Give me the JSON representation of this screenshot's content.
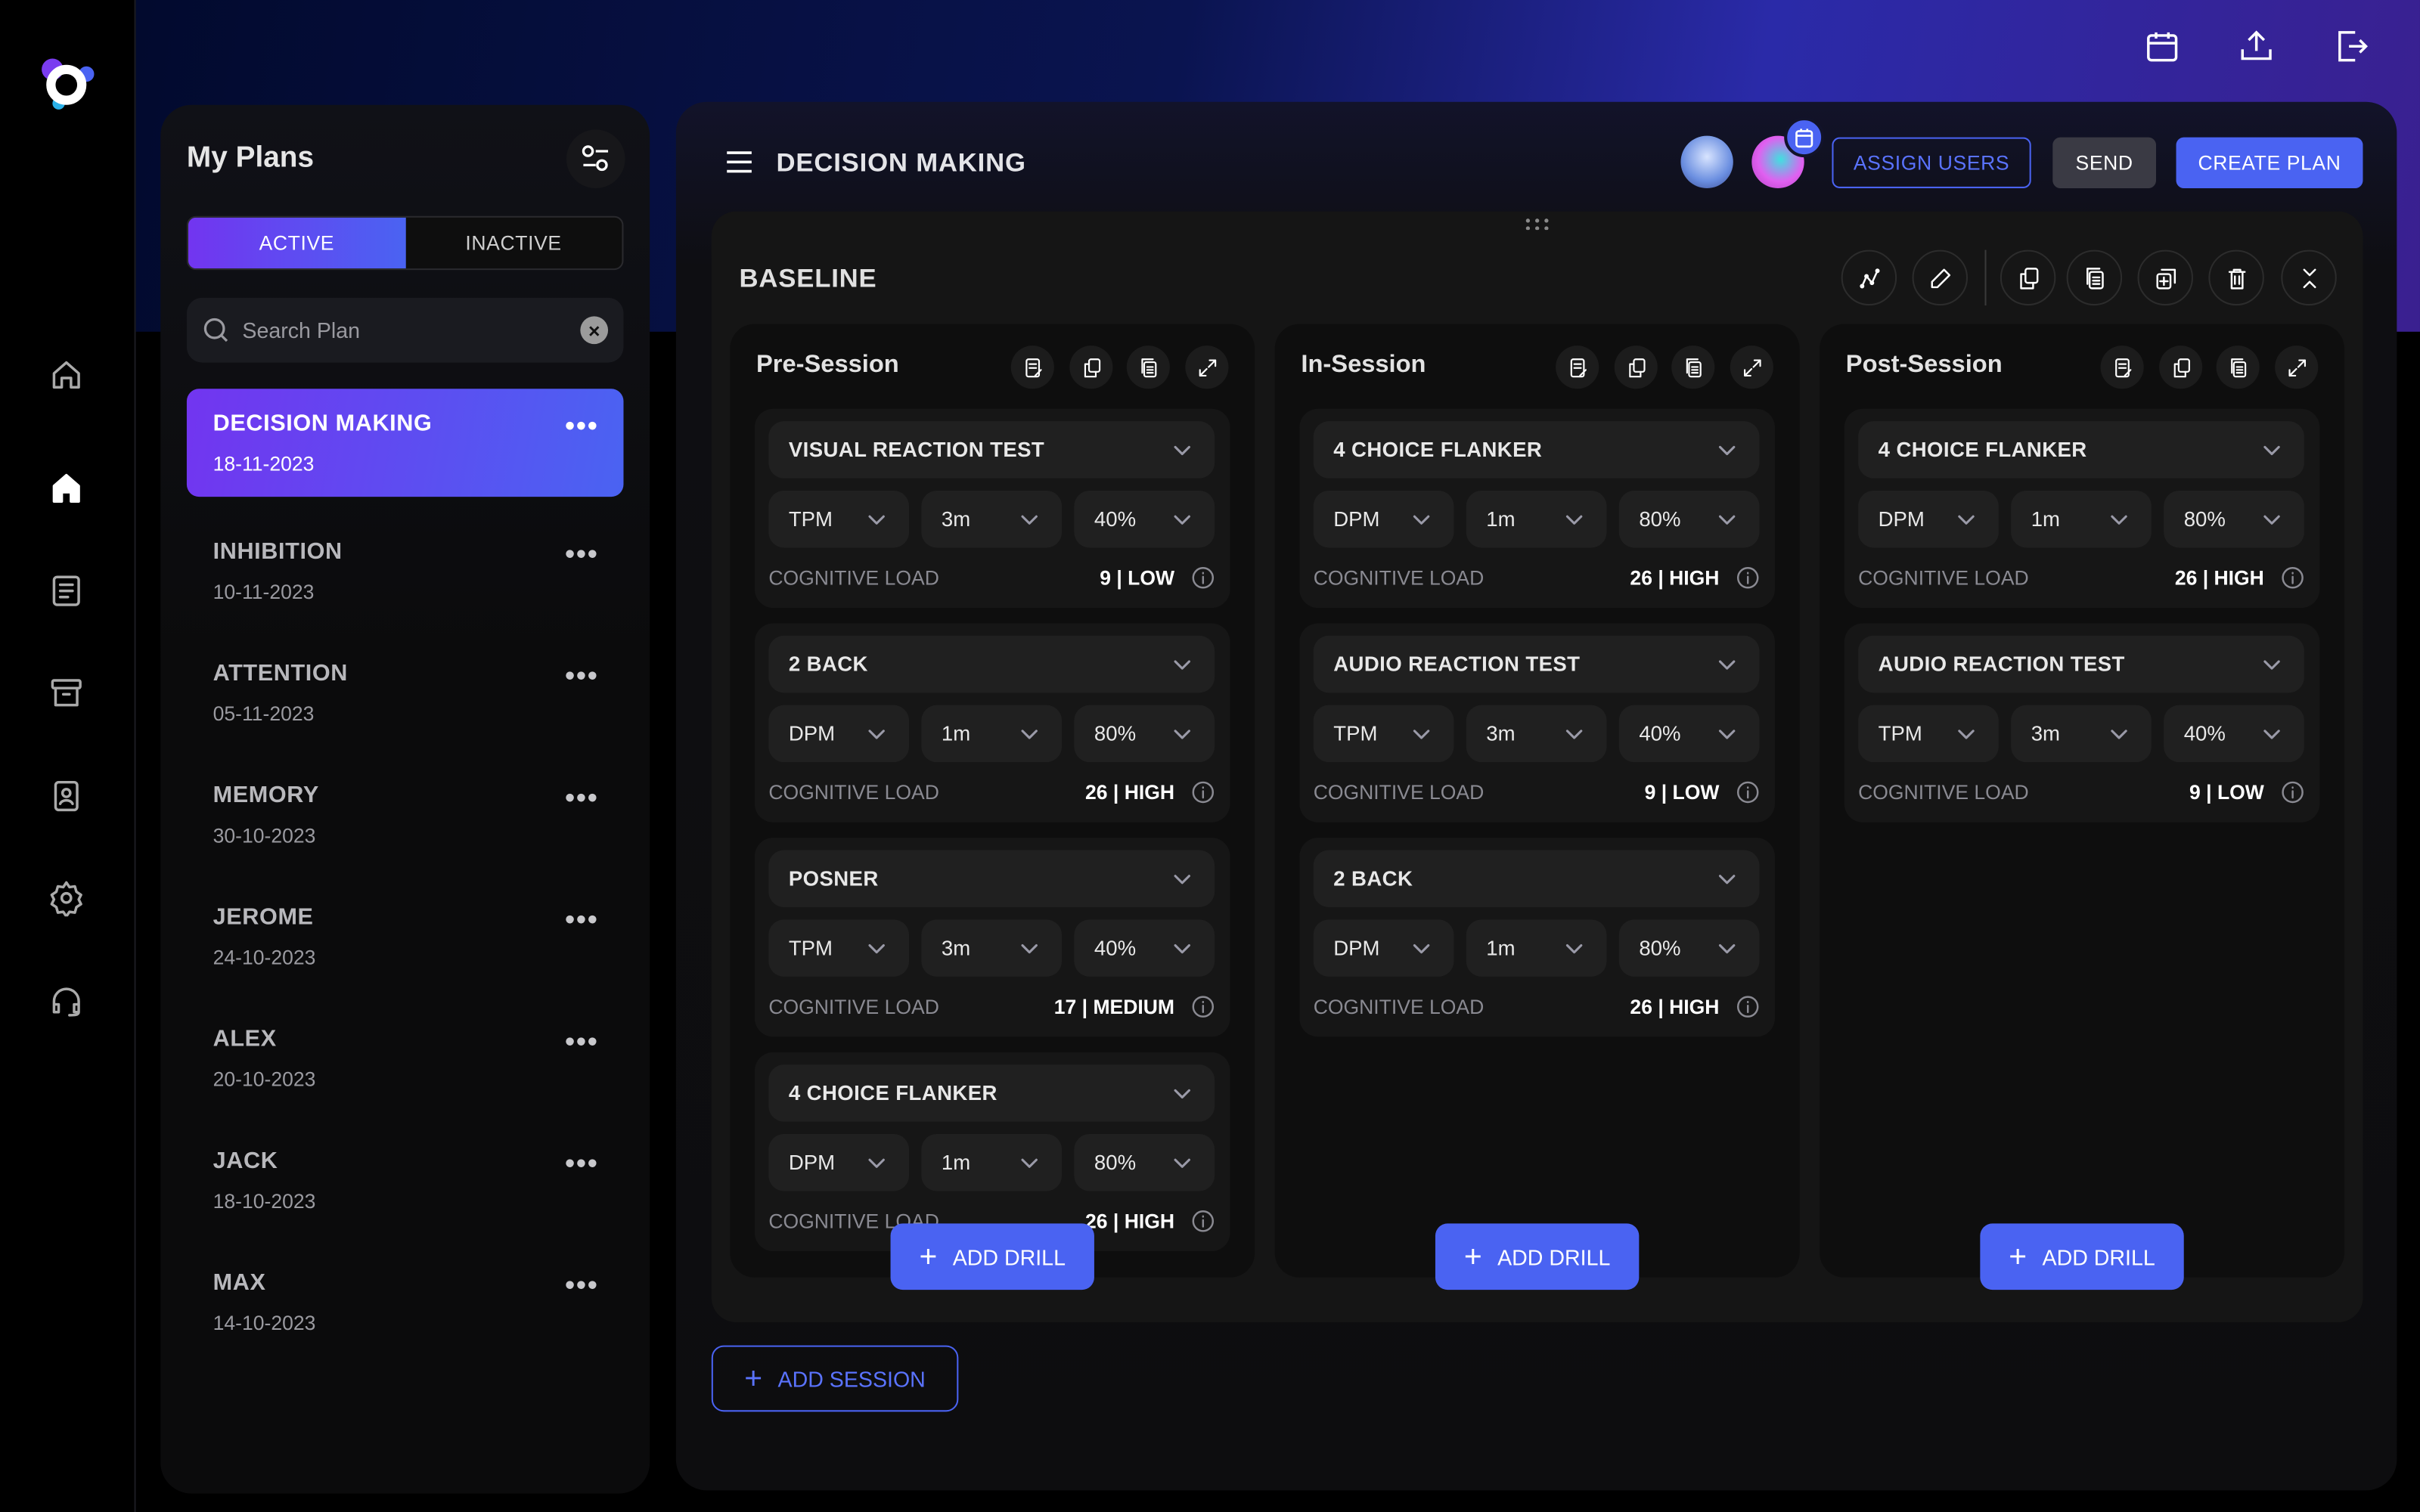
{
  "colors": {
    "accent": "#4a63f2",
    "gradient_start": "#7235f0",
    "gradient_end": "#4a63f2"
  },
  "nav": {
    "items": [
      {
        "icon": "home-outline-icon"
      },
      {
        "icon": "home-icon",
        "active": true
      },
      {
        "icon": "checklist-icon"
      },
      {
        "icon": "archive-icon"
      },
      {
        "icon": "contact-card-icon"
      },
      {
        "icon": "gear-icon"
      },
      {
        "icon": "headset-icon"
      }
    ]
  },
  "topbar": {
    "icons": [
      "calendar-icon",
      "upload-icon",
      "logout-icon"
    ]
  },
  "plans": {
    "title": "My Plans",
    "tabs": {
      "active": "ACTIVE",
      "inactive": "INACTIVE",
      "selected": "ACTIVE"
    },
    "search_placeholder": "Search Plan",
    "items": [
      {
        "name": "DECISION MAKING",
        "date": "18-11-2023",
        "selected": true
      },
      {
        "name": "INHIBITION",
        "date": "10-11-2023"
      },
      {
        "name": "ATTENTION",
        "date": "05-11-2023"
      },
      {
        "name": "MEMORY",
        "date": "30-10-2023"
      },
      {
        "name": "JEROME",
        "date": "24-10-2023"
      },
      {
        "name": "ALEX",
        "date": "20-10-2023"
      },
      {
        "name": "JACK",
        "date": "18-10-2023"
      },
      {
        "name": "MAX",
        "date": "14-10-2023"
      }
    ],
    "more": "•••"
  },
  "main": {
    "title": "DECISION MAKING",
    "assign_users": "ASSIGN USERS",
    "send": "SEND",
    "create_plan": "CREATE PLAN",
    "baseline": {
      "title": "BASELINE",
      "cognitive_label": "COGNITIVE LOAD",
      "add_drill": "ADD DRILL",
      "sessions": [
        {
          "title": "Pre-Session",
          "drills": [
            {
              "name": "VISUAL REACTION TEST",
              "metric": "TPM",
              "duration": "3m",
              "intensity": "40%",
              "load": "9 | LOW"
            },
            {
              "name": "2 BACK",
              "metric": "DPM",
              "duration": "1m",
              "intensity": "80%",
              "load": "26 | HIGH"
            },
            {
              "name": "POSNER",
              "metric": "TPM",
              "duration": "3m",
              "intensity": "40%",
              "load": "17 | MEDIUM"
            },
            {
              "name": "4 CHOICE FLANKER",
              "metric": "DPM",
              "duration": "1m",
              "intensity": "80%",
              "load": "26 | HIGH"
            }
          ]
        },
        {
          "title": "In-Session",
          "drills": [
            {
              "name": "4 CHOICE FLANKER",
              "metric": "DPM",
              "duration": "1m",
              "intensity": "80%",
              "load": "26 | HIGH"
            },
            {
              "name": "AUDIO REACTION TEST",
              "metric": "TPM",
              "duration": "3m",
              "intensity": "40%",
              "load": "9 | LOW"
            },
            {
              "name": "2 BACK",
              "metric": "DPM",
              "duration": "1m",
              "intensity": "80%",
              "load": "26 | HIGH"
            }
          ]
        },
        {
          "title": "Post-Session",
          "drills": [
            {
              "name": "4 CHOICE FLANKER",
              "metric": "DPM",
              "duration": "1m",
              "intensity": "80%",
              "load": "26 | HIGH"
            },
            {
              "name": "AUDIO REACTION TEST",
              "metric": "TPM",
              "duration": "3m",
              "intensity": "40%",
              "load": "9 | LOW"
            }
          ]
        }
      ]
    },
    "add_session": "ADD SESSION"
  }
}
